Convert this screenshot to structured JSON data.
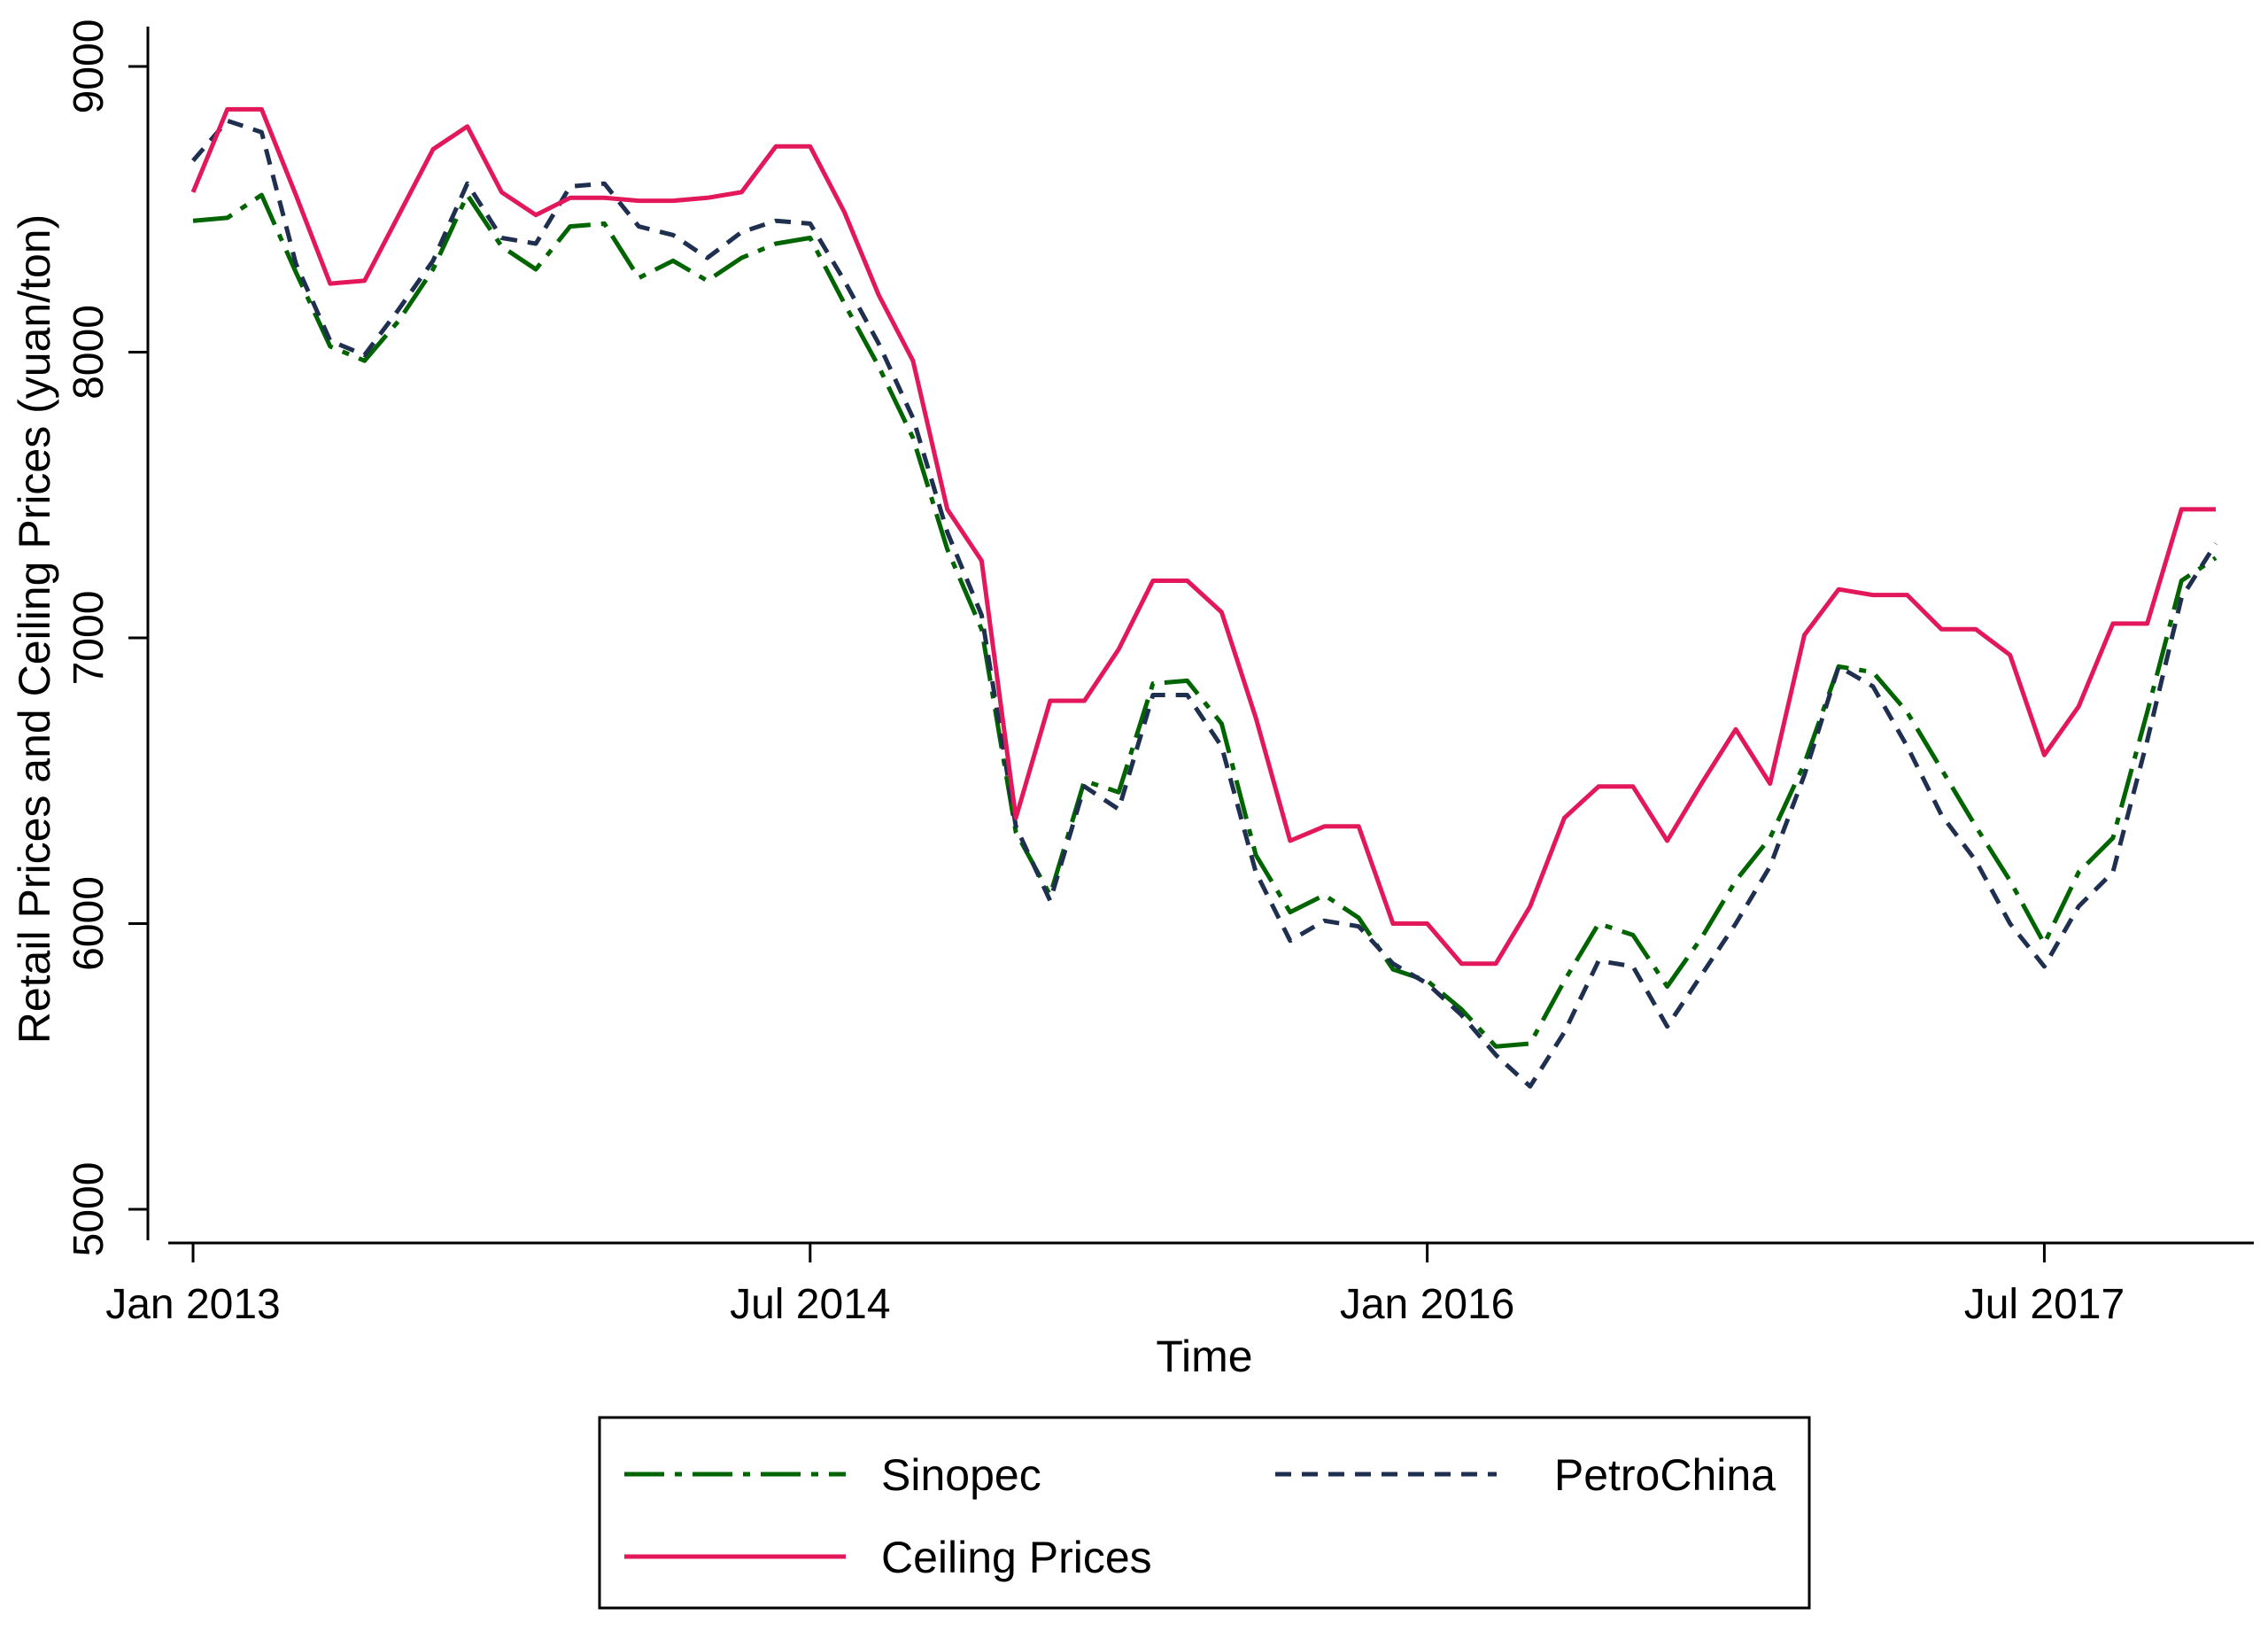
{
  "chart_data": {
    "type": "line",
    "title": "",
    "xlabel": "Time",
    "ylabel": "Retail Prices and Ceiling Prices (yuan/ton)",
    "ylim": [
      5000,
      9000
    ],
    "xlim": [
      "2013-01",
      "2017-12"
    ],
    "grid": false,
    "legend_position": "bottom",
    "x_ticks": [
      {
        "value": "2013-01",
        "label": "Jan 2013"
      },
      {
        "value": "2014-07",
        "label": "Jul 2014"
      },
      {
        "value": "2016-01",
        "label": "Jan 2016"
      },
      {
        "value": "2017-07",
        "label": "Jul 2017"
      }
    ],
    "y_ticks": [
      5000,
      6000,
      7000,
      8000,
      9000
    ],
    "x": [
      "2013-01",
      "2013-02",
      "2013-03",
      "2013-04",
      "2013-05",
      "2013-06",
      "2013-07",
      "2013-08",
      "2013-09",
      "2013-10",
      "2013-11",
      "2013-12",
      "2014-01",
      "2014-02",
      "2014-03",
      "2014-04",
      "2014-05",
      "2014-06",
      "2014-07",
      "2014-08",
      "2014-09",
      "2014-10",
      "2014-11",
      "2014-12",
      "2015-01",
      "2015-02",
      "2015-03",
      "2015-04",
      "2015-05",
      "2015-06",
      "2015-07",
      "2015-08",
      "2015-09",
      "2015-10",
      "2015-11",
      "2015-12",
      "2016-01",
      "2016-02",
      "2016-03",
      "2016-04",
      "2016-05",
      "2016-06",
      "2016-07",
      "2016-08",
      "2016-09",
      "2016-10",
      "2016-11",
      "2016-12",
      "2017-01",
      "2017-02",
      "2017-03",
      "2017-04",
      "2017-05",
      "2017-06",
      "2017-07",
      "2017-08",
      "2017-09",
      "2017-10",
      "2017-11",
      "2017-12"
    ],
    "series": [
      {
        "name": "Sinopec",
        "color": "#006400",
        "style": "dash-dot",
        "values": [
          8460,
          8470,
          8550,
          8280,
          8020,
          7970,
          8110,
          8290,
          8550,
          8370,
          8290,
          8440,
          8450,
          8260,
          8320,
          8250,
          8330,
          8380,
          8400,
          8170,
          7950,
          7700,
          7310,
          7030,
          6320,
          6100,
          6500,
          6460,
          6840,
          6850,
          6700,
          6240,
          6040,
          6100,
          6020,
          5840,
          5800,
          5700,
          5570,
          5580,
          5800,
          6000,
          5960,
          5780,
          5950,
          6150,
          6300,
          6560,
          6900,
          6880,
          6740,
          6540,
          6340,
          6150,
          5930,
          6180,
          6300,
          6740,
          7200,
          7280
        ]
      },
      {
        "name": "PetroChina",
        "color": "#1f2f4f",
        "style": "dash",
        "values": [
          8670,
          8810,
          8770,
          8310,
          8040,
          7990,
          8150,
          8320,
          8590,
          8400,
          8380,
          8580,
          8590,
          8440,
          8410,
          8330,
          8420,
          8460,
          8450,
          8250,
          8030,
          7770,
          7370,
          7080,
          6340,
          6080,
          6480,
          6400,
          6800,
          6800,
          6620,
          6180,
          5940,
          6010,
          5990,
          5860,
          5790,
          5680,
          5540,
          5430,
          5620,
          5870,
          5850,
          5640,
          5820,
          6000,
          6200,
          6520,
          6900,
          6830,
          6620,
          6380,
          6220,
          6000,
          5850,
          6060,
          6180,
          6640,
          7140,
          7330
        ]
      },
      {
        "name": "Ceiling Prices",
        "color": "#e2185b",
        "style": "solid",
        "values": [
          8560,
          8850,
          8850,
          8550,
          8240,
          8250,
          8480,
          8710,
          8790,
          8560,
          8480,
          8540,
          8540,
          8530,
          8530,
          8540,
          8560,
          8720,
          8720,
          8490,
          8200,
          7970,
          7450,
          7270,
          6370,
          6780,
          6780,
          6960,
          7200,
          7200,
          7090,
          6720,
          6290,
          6340,
          6340,
          6000,
          6000,
          5860,
          5860,
          6060,
          6370,
          6480,
          6480,
          6290,
          6490,
          6680,
          6490,
          7010,
          7170,
          7150,
          7150,
          7030,
          7030,
          6940,
          6590,
          6760,
          7050,
          7050,
          7450,
          7450
        ]
      }
    ],
    "legend": [
      {
        "label": "Sinopec",
        "series": 0
      },
      {
        "label": "PetroChina",
        "series": 1
      },
      {
        "label": "Ceiling Prices",
        "series": 2
      }
    ]
  }
}
